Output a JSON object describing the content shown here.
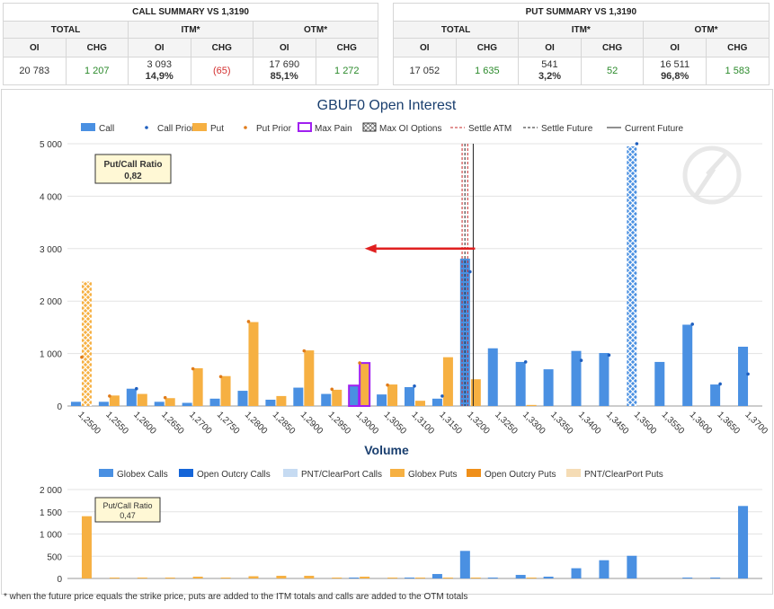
{
  "call_summary": {
    "title": "CALL SUMMARY VS 1,3190",
    "groups": [
      "TOTAL",
      "ITM*",
      "OTM*"
    ],
    "col_labels": [
      "OI",
      "CHG",
      "OI",
      "CHG",
      "OI",
      "CHG"
    ],
    "total_oi": "20 783",
    "total_chg": "1 207",
    "itm_oi": "3 093",
    "itm_pct": "14,9%",
    "itm_chg": "(65)",
    "otm_oi": "17 690",
    "otm_pct": "85,1%",
    "otm_chg": "1 272"
  },
  "put_summary": {
    "title": "PUT SUMMARY VS 1,3190",
    "groups": [
      "TOTAL",
      "ITM*",
      "OTM*"
    ],
    "col_labels": [
      "OI",
      "CHG",
      "OI",
      "CHG",
      "OI",
      "CHG"
    ],
    "total_oi": "17 052",
    "total_chg": "1 635",
    "itm_oi": "541",
    "itm_pct": "3,2%",
    "itm_chg": "52",
    "otm_oi": "16 511",
    "otm_pct": "96,8%",
    "otm_chg": "1 583"
  },
  "colors": {
    "call": "#4a90e2",
    "put": "#f6b042",
    "call_prior": "#1f5fbf",
    "put_prior": "#e07b1a",
    "max_pain": "#a020f0",
    "arrow": "#e02020",
    "settle_atm": "#c62828",
    "open_outcry_calls": "#1565d8",
    "pnt_calls": "#c6dbf2",
    "open_outcry_puts": "#ef8f1a",
    "pnt_puts": "#f5dcb5"
  },
  "footnote": "* when the future price equals the strike price, puts are added to the ITM totals and calls are added to the OTM totals",
  "chart_data": [
    {
      "type": "bar",
      "title": "GBUF0 Open Interest",
      "legend": [
        "Call",
        "Call Prior",
        "Put",
        "Put Prior",
        "Max Pain",
        "Max OI Options",
        "Settle ATM",
        "Settle Future",
        "Current Future"
      ],
      "categories": [
        "1,2500",
        "1,2550",
        "1,2600",
        "1,2650",
        "1,2700",
        "1,2750",
        "1,2800",
        "1,2850",
        "1,2900",
        "1,2950",
        "1,3000",
        "1,3050",
        "1,3100",
        "1,3150",
        "1,3200",
        "1,3250",
        "1,3300",
        "1,3350",
        "1,3400",
        "1,3450",
        "1,3500",
        "1,3550",
        "1,3600",
        "1,3650",
        "1,3700"
      ],
      "series": [
        {
          "name": "Call",
          "values": [
            80,
            80,
            330,
            80,
            60,
            140,
            290,
            120,
            350,
            230,
            390,
            220,
            360,
            140,
            2810,
            1100,
            840,
            700,
            1050,
            1010,
            4950,
            840,
            1550,
            410,
            1130
          ]
        },
        {
          "name": "Call Prior",
          "values": [
            null,
            null,
            330,
            null,
            null,
            null,
            null,
            null,
            null,
            null,
            null,
            null,
            380,
            190,
            2560,
            null,
            840,
            null,
            870,
            970,
            5000,
            null,
            1560,
            420,
            610
          ]
        },
        {
          "name": "Put",
          "values": [
            2370,
            200,
            230,
            150,
            720,
            570,
            1600,
            190,
            1060,
            310,
            820,
            410,
            100,
            930,
            510,
            0,
            20,
            0,
            0,
            0,
            0,
            0,
            0,
            0,
            0
          ]
        },
        {
          "name": "Put Prior",
          "values": [
            930,
            190,
            null,
            160,
            710,
            560,
            1610,
            null,
            1050,
            320,
            820,
            400,
            null,
            null,
            null,
            null,
            null,
            null,
            null,
            null,
            null,
            null,
            null,
            null,
            null
          ]
        }
      ],
      "max_pain_strike": "1,3000",
      "max_oi_call_strike": "1,3500",
      "max_oi_put_strike": "1,2500",
      "settle_atm_strikes": [
        13185,
        13195
      ],
      "settle_future": 13190,
      "current_future": 13205,
      "arrow_level": 3000,
      "ylim": [
        0,
        5000
      ],
      "yticks": [
        0,
        1000,
        2000,
        3000,
        4000,
        5000
      ],
      "ytick_labels": [
        "0",
        "1 000",
        "2 000",
        "3 000",
        "4 000",
        "5 000"
      ],
      "pc_ratio_label": "Put/Call Ratio",
      "pc_ratio_value": "0,82"
    },
    {
      "type": "bar",
      "title": "Volume",
      "legend": [
        "Globex Calls",
        "Open Outcry Calls",
        "PNT/ClearPort Calls",
        "Globex Puts",
        "Open Outcry Puts",
        "PNT/ClearPort Puts"
      ],
      "categories": [
        "1,2500",
        "1,2550",
        "1,2600",
        "1,2650",
        "1,2700",
        "1,2750",
        "1,2800",
        "1,2850",
        "1,2900",
        "1,2950",
        "1,3000",
        "1,3050",
        "1,3100",
        "1,3150",
        "1,3200",
        "1,3250",
        "1,3300",
        "1,3350",
        "1,3400",
        "1,3450",
        "1,3500",
        "1,3550",
        "1,3600",
        "1,3650",
        "1,3700"
      ],
      "series": [
        {
          "name": "Globex Calls",
          "values": [
            0,
            0,
            0,
            0,
            0,
            0,
            0,
            0,
            0,
            0,
            20,
            0,
            20,
            100,
            620,
            20,
            80,
            40,
            230,
            410,
            510,
            0,
            20,
            20,
            1630
          ]
        },
        {
          "name": "Globex Puts",
          "values": [
            1400,
            20,
            20,
            20,
            40,
            20,
            50,
            60,
            60,
            20,
            40,
            20,
            20,
            20,
            20,
            0,
            20,
            0,
            0,
            0,
            0,
            0,
            0,
            0,
            0
          ]
        }
      ],
      "ylim": [
        0,
        2000
      ],
      "yticks": [
        0,
        500,
        1000,
        1500,
        2000
      ],
      "ytick_labels": [
        "0",
        "500",
        "1 000",
        "1 500",
        "2 000"
      ],
      "pc_ratio_label": "Put/Call Ratio",
      "pc_ratio_value": "0,47"
    }
  ]
}
